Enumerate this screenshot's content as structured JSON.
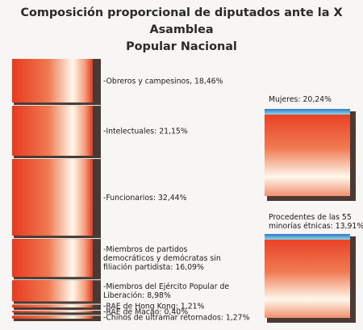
{
  "title": "Composición proporcional de diputados ante la X Asamblea Popular Nacional",
  "title_lines": [
    "Composición proporcional de diputados ante la X Asamblea",
    "Popular Nacional"
  ],
  "colors": {
    "red": "#e8391e",
    "light": "#fff8ec",
    "shadow": "#4a3a33",
    "blue": "#2f78c4",
    "cyan": "#8fd7ec"
  },
  "chart_data": {
    "type": "bar",
    "title": "Composición proporcional de diputados ante la X Asamblea Popular Nacional",
    "stack": [
      {
        "name": "Obreros y campesinos",
        "value": 18.46,
        "label_lines": [
          "-Obreros y campesinos, 18,46%"
        ]
      },
      {
        "name": "Intelectuales",
        "value": 21.15,
        "label_lines": [
          "-Intelectuales: 21,15%"
        ]
      },
      {
        "name": "Funcionarios",
        "value": 32.44,
        "label_lines": [
          "-Funcionarios: 32,44%"
        ]
      },
      {
        "name": "Miembros de partidos democráticos y demócratas sin filiación partidista",
        "value": 16.09,
        "label_lines": [
          "-Miembros  de  partidos",
          "democráticos y demócratas sin",
          "filiación partidista: 16,09%"
        ]
      },
      {
        "name": "Miembros del Ejército Popular de Liberación",
        "value": 8.98,
        "label_lines": [
          "-Miembros del Ejército Popular de",
          "Liberación: 8,98%"
        ]
      },
      {
        "name": "RAE de Hong Kong",
        "value": 1.21,
        "label_lines": [
          "-RAE de Hong Kong: 1,21%"
        ]
      },
      {
        "name": "RAE de Macao",
        "value": 0.4,
        "label_lines": [
          "-RAE de Macao: 0,40%"
        ]
      },
      {
        "name": "Chinos de ultramar retornados",
        "value": 1.27,
        "label_lines": [
          "-Chinos de ultramar retornados: 1,27%"
        ]
      }
    ],
    "side": [
      {
        "name": "Mujeres",
        "value": 20.24,
        "label_lines": [
          "Mujeres: 20,24%"
        ]
      },
      {
        "name": "Procedentes de las 55 minorías étnicas",
        "value": 13.91,
        "label_lines": [
          "Procedentes  de  las  55",
          "minorías étnicas: 13,91%"
        ]
      }
    ]
  }
}
